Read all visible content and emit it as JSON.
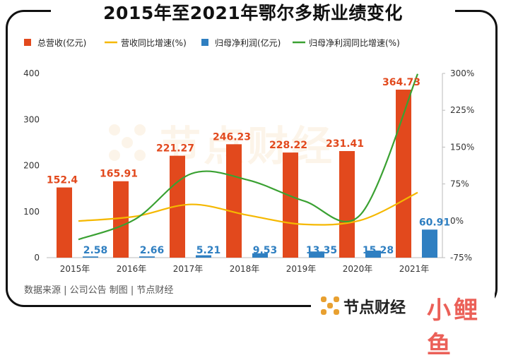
{
  "title": "2015年至2021年鄂尔多斯业绩变化",
  "source": "数据来源 | 公司公告  制图 | 节点财经",
  "brand": {
    "name": "节点财经",
    "corner_logo": "小鲤鱼",
    "watermark": "节点财经"
  },
  "colors": {
    "revenue": "#e2491d",
    "net_profit": "#2f7fc1",
    "revenue_growth": "#f5b800",
    "profit_growth": "#3aa132"
  },
  "chart_data": {
    "type": "bar",
    "categories": [
      "2015年",
      "2016年",
      "2017年",
      "2018年",
      "2019年",
      "2020年",
      "2021年"
    ],
    "series": [
      {
        "name": "总营收(亿元)",
        "kind": "bar",
        "axis": "left",
        "values": [
          152.4,
          165.91,
          221.27,
          246.23,
          228.22,
          231.41,
          364.73
        ],
        "labels": [
          "152.4",
          "165.91",
          "221.27",
          "246.23",
          "228.22",
          "231.41",
          "364.73"
        ]
      },
      {
        "name": "营收同比增速(%)",
        "kind": "line",
        "axis": "right",
        "values": [
          -0.5,
          8.9,
          33.4,
          11.3,
          -7.3,
          1.4,
          57.6
        ]
      },
      {
        "name": "归母净利润(亿元)",
        "kind": "bar",
        "axis": "left",
        "values": [
          2.58,
          2.66,
          5.21,
          9.53,
          13.35,
          15.28,
          60.91
        ],
        "labels": [
          "2.58",
          "2.66",
          "5.21",
          "9.53",
          "13.35",
          "15.28",
          "60.91"
        ]
      },
      {
        "name": "归母净利润同比增速(%)",
        "kind": "line",
        "axis": "right",
        "values": [
          -38,
          3,
          96,
          83,
          40,
          14,
          299
        ]
      }
    ],
    "y_left": {
      "min": 0,
      "max": 400,
      "ticks": [
        "0",
        "100",
        "200",
        "300",
        "400"
      ]
    },
    "y_right": {
      "min": -75,
      "max": 300,
      "ticks": [
        "-75%",
        "0%",
        "75%",
        "150%",
        "225%",
        "300%"
      ]
    },
    "legend_position": "top",
    "grid": false
  }
}
